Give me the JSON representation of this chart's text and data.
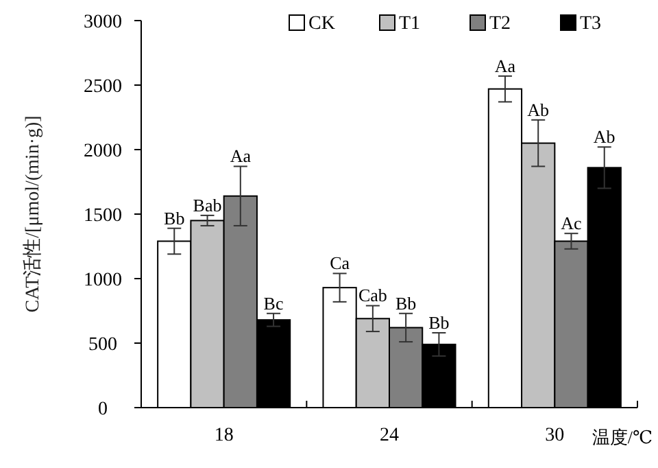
{
  "chart_data": {
    "type": "bar",
    "xlabel": "温度/℃",
    "ylabel": "CAT活性/[μmol/(min·g)]",
    "categories": [
      "18",
      "24",
      "30"
    ],
    "series": [
      {
        "name": "CK",
        "color": "#ffffff",
        "values": [
          1290,
          930,
          2470
        ],
        "errors": [
          100,
          110,
          100
        ],
        "value_labels": [
          "Bb",
          "Ca",
          "Aa"
        ]
      },
      {
        "name": "T1",
        "color": "#c0c0c0",
        "values": [
          1450,
          690,
          2050
        ],
        "errors": [
          40,
          100,
          180
        ],
        "value_labels": [
          "Bab",
          "Cab",
          "Ab"
        ]
      },
      {
        "name": "T2",
        "color": "#808080",
        "values": [
          1640,
          620,
          1290
        ],
        "errors": [
          230,
          110,
          60
        ],
        "value_labels": [
          "Aa",
          "Bb",
          "Ac"
        ]
      },
      {
        "name": "T3",
        "color": "#000000",
        "values": [
          680,
          490,
          1860
        ],
        "errors": [
          50,
          90,
          160
        ],
        "value_labels": [
          "Bc",
          "Bb",
          "Ab"
        ]
      }
    ],
    "ylim": [
      0,
      3000
    ],
    "yticks": [
      0,
      500,
      1000,
      1500,
      2000,
      2500,
      3000
    ],
    "grid": false,
    "legend": "top right"
  }
}
